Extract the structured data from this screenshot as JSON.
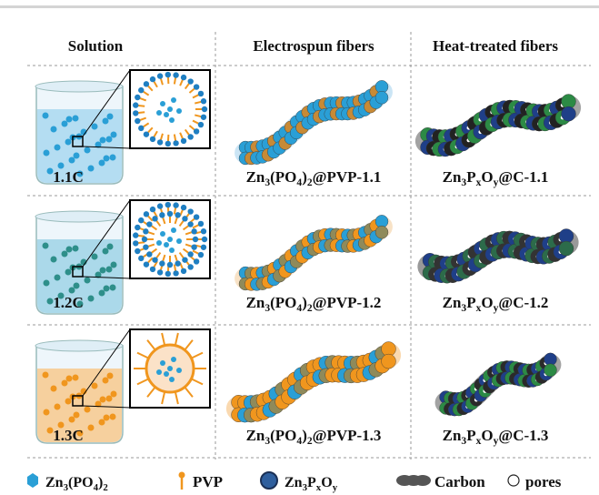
{
  "header": {
    "columns": [
      "Solution",
      "Electrospun fibers",
      "Heat-treated fibers"
    ]
  },
  "rows": [
    {
      "solution": "1.1C",
      "electrospun": [
        "Zn",
        "3",
        "(PO",
        "4",
        ")",
        "2",
        "@PVP-1.1"
      ],
      "heat_treated": [
        "Zn",
        "3",
        "P",
        "x",
        "O",
        "y",
        "@C-1.1"
      ]
    },
    {
      "solution": "1.2C",
      "electrospun": [
        "Zn",
        "3",
        "(PO",
        "4",
        ")",
        "2",
        "@PVP-1.2"
      ],
      "heat_treated": [
        "Zn",
        "3",
        "P",
        "x",
        "O",
        "y",
        "@C-1.2"
      ]
    },
    {
      "solution": "1.3C",
      "electrospun": [
        "Zn",
        "3",
        "(PO",
        "4",
        ")",
        "2",
        "@PVP-1.3"
      ],
      "heat_treated": [
        "Zn",
        "3",
        "P",
        "x",
        "O",
        "y",
        "@C-1.3"
      ]
    }
  ],
  "legend": [
    [
      "Zn",
      "3",
      "(PO",
      "4",
      ")",
      "2"
    ],
    [
      "PVP"
    ],
    [
      "Zn",
      "3",
      "P",
      "x",
      "O",
      "y"
    ],
    [
      "Carbon"
    ],
    [
      "pores"
    ]
  ]
}
